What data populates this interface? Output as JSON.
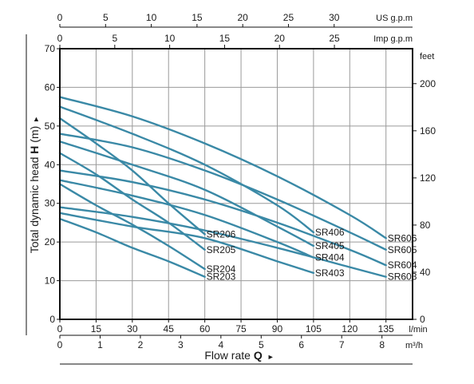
{
  "chart_data": {
    "type": "line",
    "xlabel_prefix": "Flow rate ",
    "xlabel_symbol": "Q",
    "xlabel_arrow": "►",
    "ylabel_prefix": "Total dynamic head ",
    "ylabel_symbol": "H",
    "ylabel_suffix": " (m)",
    "ylabel_arrow": "►",
    "x_unit": "l/min",
    "xlim": [
      0,
      146
    ],
    "ylim": [
      0,
      70
    ],
    "grid": true,
    "colors": {
      "series": "#3a89a6",
      "frame": "#111111",
      "grid": "#9a9a9a"
    },
    "x_ticks": [
      0,
      15,
      30,
      45,
      60,
      75,
      90,
      105,
      120,
      135
    ],
    "y_ticks": [
      0,
      10,
      20,
      30,
      40,
      50,
      60,
      70
    ],
    "axes": {
      "us_gpm": {
        "unit": "US g.p.m",
        "ticks": [
          0,
          5,
          10,
          15,
          20,
          25,
          30
        ],
        "lmin_per_unit": 3.785
      },
      "imp_gpm": {
        "unit": "Imp g.p.m",
        "ticks": [
          0,
          5,
          10,
          15,
          20,
          25
        ],
        "lmin_per_unit": 4.546
      },
      "m3h": {
        "unit": "m³/h",
        "ticks": [
          0,
          1,
          2,
          3,
          4,
          5,
          6,
          7,
          8
        ],
        "lmin_per_unit": 16.667
      },
      "feet": {
        "unit": "feet",
        "ticks": [
          0,
          40,
          80,
          120,
          160,
          200
        ],
        "m_per_unit": 0.3048
      }
    },
    "series": [
      {
        "name": "SR206",
        "x": [
          0,
          15,
          30,
          45,
          60
        ],
        "y": [
          52,
          45.5,
          38.5,
          30,
          22
        ]
      },
      {
        "name": "SR205",
        "x": [
          0,
          15,
          30,
          45,
          60
        ],
        "y": [
          43,
          37.5,
          31,
          25,
          18
        ]
      },
      {
        "name": "SR204",
        "x": [
          0,
          15,
          30,
          45,
          60
        ],
        "y": [
          35,
          29.5,
          24.5,
          19,
          13
        ]
      },
      {
        "name": "SR203",
        "x": [
          0,
          15,
          30,
          45,
          60
        ],
        "y": [
          26,
          22.5,
          18.5,
          15,
          11
        ]
      },
      {
        "name": "SR406",
        "x": [
          0,
          30,
          60,
          90,
          105
        ],
        "y": [
          55,
          48,
          40,
          29.5,
          22.5
        ]
      },
      {
        "name": "SR405",
        "x": [
          0,
          30,
          60,
          90,
          105
        ],
        "y": [
          46,
          40,
          33.5,
          24,
          19
        ]
      },
      {
        "name": "SR404",
        "x": [
          0,
          30,
          60,
          90,
          105
        ],
        "y": [
          36,
          32,
          27,
          20,
          16
        ]
      },
      {
        "name": "SR403",
        "x": [
          0,
          30,
          60,
          90,
          105
        ],
        "y": [
          27.5,
          24,
          21,
          15,
          12
        ]
      },
      {
        "name": "SR606",
        "x": [
          0,
          30,
          60,
          90,
          120,
          135
        ],
        "y": [
          57.5,
          52.5,
          45.5,
          37,
          27,
          21
        ]
      },
      {
        "name": "SR605",
        "x": [
          0,
          30,
          60,
          90,
          120,
          135
        ],
        "y": [
          48,
          44.5,
          38.5,
          31,
          22.5,
          18
        ]
      },
      {
        "name": "SR604",
        "x": [
          0,
          30,
          60,
          90,
          120,
          135
        ],
        "y": [
          38.5,
          35.5,
          31,
          25,
          18,
          14
        ]
      },
      {
        "name": "SR603",
        "x": [
          0,
          30,
          60,
          90,
          120,
          135
        ],
        "y": [
          29,
          26.5,
          23,
          18.5,
          13.5,
          11
        ]
      }
    ]
  }
}
